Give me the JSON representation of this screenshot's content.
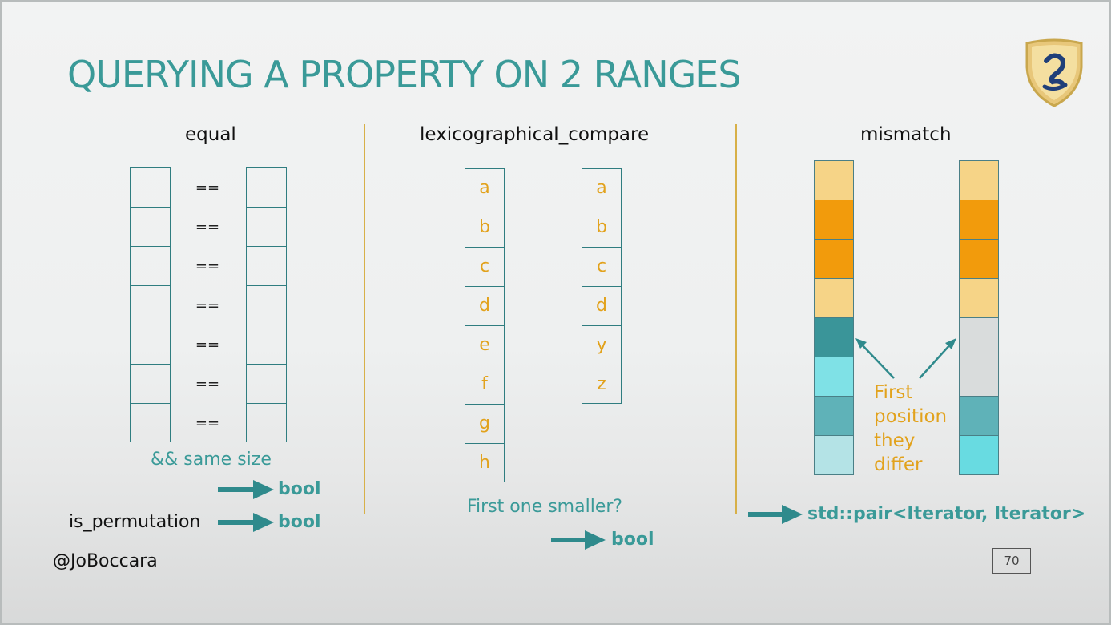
{
  "title": "QUERYING A PROPERTY ON 2 RANGES",
  "columns": {
    "equal": {
      "heading": "equal",
      "operators": [
        "==",
        "==",
        "==",
        "==",
        "==",
        "==",
        "=="
      ],
      "note": "&& same size",
      "result": "bool",
      "permutation_label": "is_permutation",
      "permutation_result": "bool"
    },
    "lexico": {
      "heading": "lexicographical_compare",
      "left": [
        "a",
        "b",
        "c",
        "d",
        "e",
        "f",
        "g",
        "h"
      ],
      "right": [
        "a",
        "b",
        "c",
        "d",
        "y",
        "z"
      ],
      "question": "First one smaller?",
      "result": "bool"
    },
    "mismatch": {
      "heading": "mismatch",
      "left_colors": [
        "#f6d487",
        "#f29b0c",
        "#f29b0c",
        "#f6d487",
        "#3a9599",
        "#7fe1e6",
        "#5fb2b8",
        "#b4e3e6"
      ],
      "right_colors": [
        "#f6d487",
        "#f29b0c",
        "#f29b0c",
        "#f6d487",
        "#d9dcdc",
        "#d9dcdc",
        "#5fb2b8",
        "#68dbe1"
      ],
      "annotation": [
        "First",
        "position",
        "they",
        "differ"
      ],
      "result": "std::pair<Iterator, Iterator>"
    }
  },
  "footer": {
    "author": "@JoBoccara",
    "page_number": "70"
  },
  "colors": {
    "accent_teal": "#3a9a98",
    "accent_orange": "#e2a21c",
    "divider": "#d7b048"
  },
  "icons": {
    "logo": "shield-logo-icon",
    "arrow": "right-arrow-icon"
  }
}
